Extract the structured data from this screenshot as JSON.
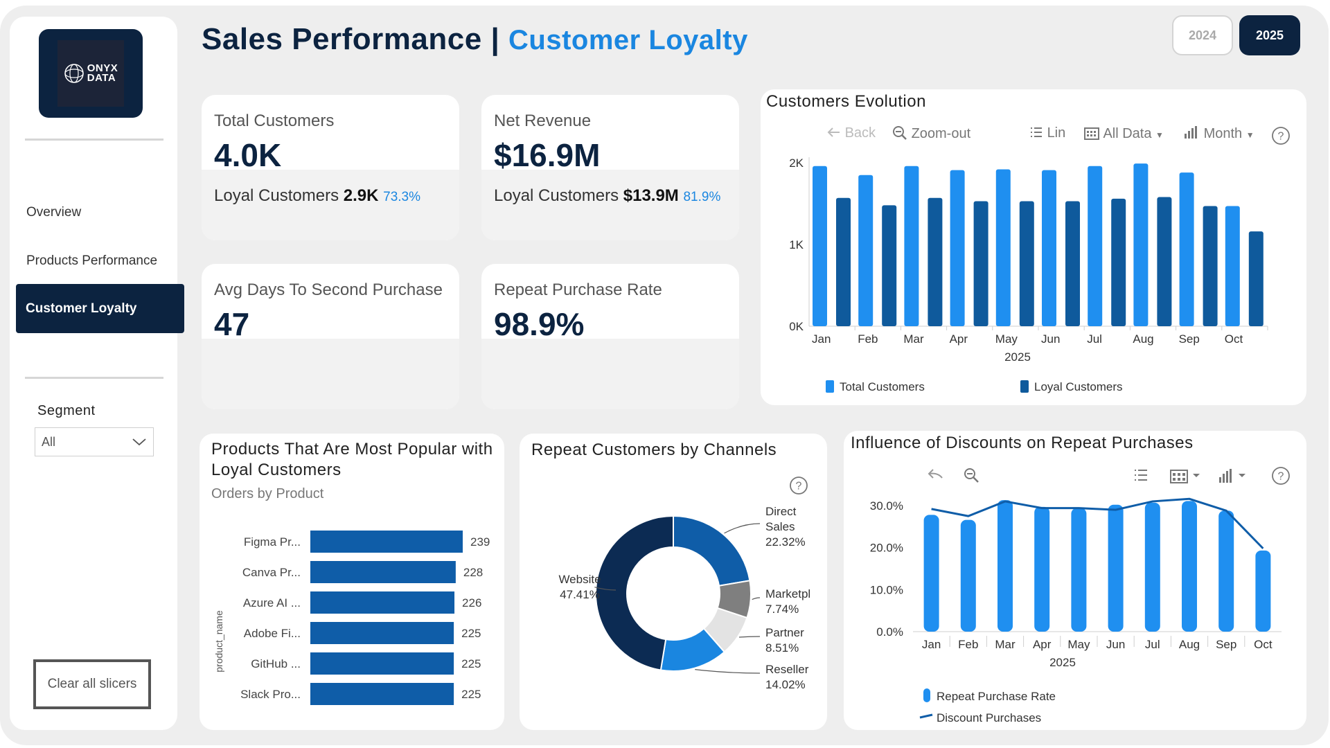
{
  "sidebar": {
    "logo_line1": "ONYX",
    "logo_line2": "DATA",
    "nav": [
      {
        "label": "Overview"
      },
      {
        "label": "Products Performance"
      },
      {
        "label": "Customer Loyalty"
      }
    ],
    "segment_label": "Segment",
    "segment_value": "All",
    "clear_label": "Clear all slicers"
  },
  "header": {
    "title": "Sales Performance",
    "separator": "|",
    "subtitle": "Customer Loyalty",
    "years": [
      "2024",
      "2025"
    ],
    "selected_year": "2025"
  },
  "kpis": [
    {
      "label": "Total Customers",
      "value": "4.0K",
      "sub_label": "Loyal Customers",
      "sub_value": "2.9K",
      "sub_pct": "73.3%"
    },
    {
      "label": "Net Revenue",
      "value": "$16.9M",
      "sub_label": "Loyal Customers",
      "sub_value": "$13.9M",
      "sub_pct": "81.9%"
    },
    {
      "label": "Avg Days To Second Purchase",
      "value": "47"
    },
    {
      "label": "Repeat Purchase Rate",
      "value": "98.9%"
    }
  ],
  "evolution_toolbar": {
    "back": "Back",
    "zoom_out": "Zoom-out",
    "scale": "Lin",
    "range": "All Data",
    "granularity": "Month"
  },
  "colors": {
    "navy": "#0c2340",
    "bright_blue": "#1f8ff0",
    "dark_blue": "#0f5a9c",
    "bar_blue": "#0f5da8"
  },
  "chart_data": [
    {
      "type": "bar",
      "title": "Customers Evolution",
      "categories": [
        "Jan",
        "Feb",
        "Mar",
        "Apr",
        "May",
        "Jun",
        "Jul",
        "Aug",
        "Sep",
        "Oct"
      ],
      "xlabel": "2025",
      "yticks": [
        "0K",
        "1K",
        "2K"
      ],
      "ylim": [
        0,
        2000
      ],
      "series": [
        {
          "name": "Total Customers",
          "values": [
            1960,
            1850,
            1960,
            1910,
            1920,
            1910,
            1960,
            1990,
            1880,
            1470
          ]
        },
        {
          "name": "Loyal Customers",
          "values": [
            1570,
            1480,
            1570,
            1530,
            1530,
            1530,
            1560,
            1580,
            1470,
            1160
          ]
        }
      ],
      "legend": "bottom"
    },
    {
      "type": "bar",
      "orientation": "horizontal",
      "title": "Products That Are Most Popular with Loyal Customers",
      "subtitle": "Orders by Product",
      "ylabel": "product_name",
      "categories": [
        "Figma Pr...",
        "Canva Pr...",
        "Azure AI ...",
        "Adobe Fi...",
        "GitHub ...",
        "Slack Pro..."
      ],
      "values": [
        239,
        228,
        226,
        225,
        225,
        225
      ],
      "value_labels": [
        "239",
        "228",
        "226",
        "225",
        "225",
        "225"
      ]
    },
    {
      "type": "pie",
      "donut": true,
      "title": "Repeat Customers by Channels",
      "slices": [
        {
          "name": "Direct Sales",
          "label_lines": [
            "Direct",
            "Sales"
          ],
          "pct": "22.32%",
          "value": 22.32,
          "color": "#0f5da8"
        },
        {
          "name": "Marketpl",
          "label_lines": [
            "Marketpl"
          ],
          "pct": "7.74%",
          "value": 7.74,
          "color": "#7f7f7f"
        },
        {
          "name": "Partner",
          "label_lines": [
            "Partner"
          ],
          "pct": "8.51%",
          "value": 8.51,
          "color": "#e3e3e3"
        },
        {
          "name": "Reseller",
          "label_lines": [
            "Reseller"
          ],
          "pct": "14.02%",
          "value": 14.02,
          "color": "#1a86e0"
        },
        {
          "name": "Website",
          "label_lines": [
            "Website"
          ],
          "pct": "47.41%",
          "value": 47.41,
          "color": "#0c2b53"
        }
      ]
    },
    {
      "type": "bar",
      "title": "Influence of Discounts on Repeat Purchases",
      "categories": [
        "Jan",
        "Feb",
        "Mar",
        "Apr",
        "May",
        "Jun",
        "Jul",
        "Aug",
        "Sep",
        "Oct"
      ],
      "xlabel": "2025",
      "yticks": [
        "0.0%",
        "10.0%",
        "20.0%",
        "30.0%"
      ],
      "ylim": [
        0,
        30
      ],
      "series": [
        {
          "name": "Repeat Purchase Rate",
          "type": "bar",
          "values": [
            27.8,
            26.6,
            31.3,
            29.7,
            29.4,
            30.2,
            30.7,
            31.1,
            28.8,
            19.3
          ]
        },
        {
          "name": "Discount Purchases",
          "type": "line",
          "values": [
            29.2,
            27.5,
            31.0,
            29.4,
            29.4,
            29.0,
            31.0,
            31.6,
            28.8,
            19.8
          ]
        }
      ],
      "legend": "bottom-left"
    }
  ]
}
